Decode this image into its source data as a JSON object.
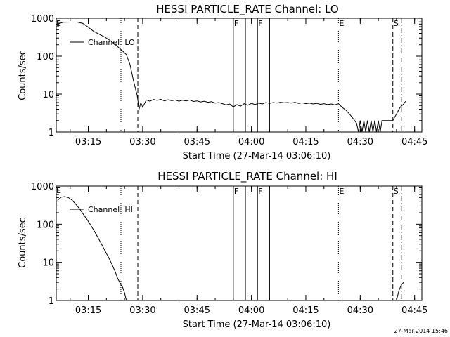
{
  "chart_data": [
    {
      "type": "line",
      "title": "HESSI PARTICLE_RATE Channel: LO",
      "xlabel": "Start Time (27-Mar-14 03:06:10)",
      "ylabel": "Counts/sec",
      "yscale": "log",
      "xlim": [
        "03:06:10",
        "04:47:00"
      ],
      "ylim": [
        1,
        1000
      ],
      "x_ticks": [
        "03:15",
        "03:30",
        "03:45",
        "04:00",
        "04:15",
        "04:30",
        "04:45"
      ],
      "y_ticks": [
        "1",
        "10",
        "100",
        "1000"
      ],
      "legend": {
        "position": "top-left",
        "entries": [
          "Channel: LO"
        ]
      },
      "series": [
        {
          "name": "Channel: LO",
          "points": [
            [
              "03:06:30",
              700
            ],
            [
              "03:08:00",
              780
            ],
            [
              "03:10:00",
              790
            ],
            [
              "03:12:00",
              790
            ],
            [
              "03:13:30",
              730
            ],
            [
              "03:15:00",
              580
            ],
            [
              "03:16:30",
              450
            ],
            [
              "03:18:00",
              380
            ],
            [
              "03:19:30",
              320
            ],
            [
              "03:21:00",
              260
            ],
            [
              "03:22:30",
              200
            ],
            [
              "03:24:00",
              150
            ],
            [
              "03:25:30",
              110
            ],
            [
              "03:26:30",
              60
            ],
            [
              "03:27:30",
              22
            ],
            [
              "03:28:30",
              9
            ],
            [
              "03:29:00",
              4
            ],
            [
              "03:29:30",
              6
            ],
            [
              "03:30:00",
              4.5
            ],
            [
              "03:31:00",
              7
            ],
            [
              "03:32:00",
              6.5
            ],
            [
              "03:33:00",
              7.2
            ],
            [
              "03:34:00",
              6.8
            ],
            [
              "03:35:00",
              7.3
            ],
            [
              "03:36:00",
              6.6
            ],
            [
              "03:37:00",
              7.1
            ],
            [
              "03:38:00",
              6.7
            ],
            [
              "03:39:00",
              7.0
            ],
            [
              "03:40:00",
              6.5
            ],
            [
              "03:41:00",
              6.9
            ],
            [
              "03:42:00",
              6.6
            ],
            [
              "03:43:00",
              7.0
            ],
            [
              "03:44:00",
              6.4
            ],
            [
              "03:45:00",
              6.6
            ],
            [
              "03:46:00",
              6.2
            ],
            [
              "03:47:00",
              6.5
            ],
            [
              "03:48:00",
              6.1
            ],
            [
              "03:49:00",
              6.3
            ],
            [
              "03:50:00",
              5.8
            ],
            [
              "03:51:00",
              6.0
            ],
            [
              "03:52:00",
              5.6
            ],
            [
              "03:53:00",
              5.2
            ],
            [
              "03:54:00",
              5.5
            ],
            [
              "03:55:00",
              4.6
            ],
            [
              "03:56:00",
              5.3
            ],
            [
              "03:57:00",
              4.8
            ],
            [
              "03:58:00",
              5.6
            ],
            [
              "03:59:00",
              5.1
            ],
            [
              "04:00:00",
              5.7
            ],
            [
              "04:01:00",
              5.3
            ],
            [
              "04:02:00",
              5.8
            ],
            [
              "04:03:00",
              5.5
            ],
            [
              "04:04:00",
              6.0
            ],
            [
              "04:05:00",
              5.7
            ],
            [
              "04:06:00",
              6.0
            ],
            [
              "04:07:00",
              5.8
            ],
            [
              "04:08:00",
              6.1
            ],
            [
              "04:09:00",
              5.9
            ],
            [
              "04:10:00",
              6.0
            ],
            [
              "04:11:00",
              5.8
            ],
            [
              "04:12:00",
              6.1
            ],
            [
              "04:13:00",
              5.7
            ],
            [
              "04:14:00",
              5.9
            ],
            [
              "04:15:00",
              5.6
            ],
            [
              "04:16:00",
              5.8
            ],
            [
              "04:17:00",
              5.5
            ],
            [
              "04:18:00",
              5.7
            ],
            [
              "04:19:00",
              5.4
            ],
            [
              "04:20:00",
              5.6
            ],
            [
              "04:21:00",
              5.3
            ],
            [
              "04:22:00",
              5.5
            ],
            [
              "04:23:00",
              5.2
            ],
            [
              "04:24:00",
              5.6
            ],
            [
              "04:25:00",
              4.5
            ],
            [
              "04:26:00",
              3.8
            ],
            [
              "04:27:00",
              3.0
            ],
            [
              "04:28:00",
              2.3
            ],
            [
              "04:29:00",
              1.7
            ],
            [
              "04:29:30",
              1.0
            ],
            [
              "04:30:00",
              2.0
            ],
            [
              "04:30:30",
              1.0
            ],
            [
              "04:31:00",
              2.0
            ],
            [
              "04:31:30",
              1.0
            ],
            [
              "04:32:00",
              2.0
            ],
            [
              "04:32:30",
              1.0
            ],
            [
              "04:33:00",
              2.0
            ],
            [
              "04:33:30",
              1.0
            ],
            [
              "04:34:00",
              2.0
            ],
            [
              "04:34:30",
              1.0
            ],
            [
              "04:35:00",
              2.0
            ],
            [
              "04:35:30",
              1.0
            ],
            [
              "04:36:00",
              2.0
            ],
            [
              "04:37:00",
              2.0
            ],
            [
              "04:38:00",
              2.0
            ],
            [
              "04:39:00",
              2.0
            ],
            [
              "04:40:00",
              3.0
            ],
            [
              "04:41:00",
              4.5
            ],
            [
              "04:42:00",
              5.5
            ],
            [
              "04:42:30",
              6.5
            ]
          ]
        }
      ],
      "markers": [
        {
          "time": "03:24:00",
          "style": "dotted",
          "label": ""
        },
        {
          "time": "03:28:40",
          "style": "dashed",
          "label": ""
        },
        {
          "time": "03:55:00",
          "style": "solid",
          "label": "F"
        },
        {
          "time": "03:58:20",
          "style": "solid",
          "label": ""
        },
        {
          "time": "04:01:40",
          "style": "solid",
          "label": "F"
        },
        {
          "time": "04:05:00",
          "style": "solid",
          "label": ""
        },
        {
          "time": "04:24:00",
          "style": "dotted",
          "label": "E"
        },
        {
          "time": "04:39:00",
          "style": "dashed",
          "label": "S"
        },
        {
          "time": "04:41:20",
          "style": "dashdot",
          "label": ""
        }
      ],
      "corner_label": "E"
    },
    {
      "type": "line",
      "title": "HESSI PARTICLE_RATE Channel: HI",
      "xlabel": "Start Time (27-Mar-14 03:06:10)",
      "ylabel": "Counts/sec",
      "yscale": "log",
      "xlim": [
        "03:06:10",
        "04:47:00"
      ],
      "ylim": [
        1,
        1000
      ],
      "x_ticks": [
        "03:15",
        "03:30",
        "03:45",
        "04:00",
        "04:15",
        "04:30",
        "04:45"
      ],
      "y_ticks": [
        "1",
        "10",
        "100",
        "1000"
      ],
      "legend": {
        "position": "top-left",
        "entries": [
          "Channel: HI"
        ]
      },
      "series": [
        {
          "name": "Channel: HI",
          "points": [
            [
              "03:06:30",
              420
            ],
            [
              "03:07:30",
              510
            ],
            [
              "03:08:30",
              530
            ],
            [
              "03:09:30",
              500
            ],
            [
              "03:10:30",
              430
            ],
            [
              "03:11:30",
              340
            ],
            [
              "03:12:30",
              260
            ],
            [
              "03:13:30",
              190
            ],
            [
              "03:14:30",
              140
            ],
            [
              "03:15:30",
              100
            ],
            [
              "03:16:30",
              70
            ],
            [
              "03:17:30",
              48
            ],
            [
              "03:18:30",
              32
            ],
            [
              "03:19:30",
              21
            ],
            [
              "03:20:30",
              14
            ],
            [
              "03:21:30",
              9
            ],
            [
              "03:22:30",
              5.5
            ],
            [
              "03:23:00",
              4.0
            ],
            [
              "03:23:30",
              3.2
            ],
            [
              "03:24:00",
              2.6
            ],
            [
              "03:24:30",
              2.2
            ],
            [
              "03:25:00",
              1.6
            ],
            [
              "03:25:30",
              1.0
            ]
          ]
        },
        {
          "name": "",
          "points": [
            [
              "04:40:00",
              1.0
            ],
            [
              "04:40:40",
              1.8
            ],
            [
              "04:41:20",
              2.6
            ],
            [
              "04:42:00",
              3.0
            ]
          ]
        }
      ],
      "markers": [
        {
          "time": "03:24:00",
          "style": "dotted",
          "label": ""
        },
        {
          "time": "03:28:40",
          "style": "dashed",
          "label": ""
        },
        {
          "time": "03:55:00",
          "style": "solid",
          "label": "F"
        },
        {
          "time": "03:58:20",
          "style": "solid",
          "label": ""
        },
        {
          "time": "04:01:40",
          "style": "solid",
          "label": "F"
        },
        {
          "time": "04:05:00",
          "style": "solid",
          "label": ""
        },
        {
          "time": "04:24:00",
          "style": "dotted",
          "label": "E"
        },
        {
          "time": "04:39:00",
          "style": "dashed",
          "label": "S"
        },
        {
          "time": "04:41:20",
          "style": "dashdot",
          "label": ""
        }
      ],
      "corner_label": "E"
    }
  ],
  "footer": {
    "timestamp": "27-Mar-2014 15:46"
  }
}
